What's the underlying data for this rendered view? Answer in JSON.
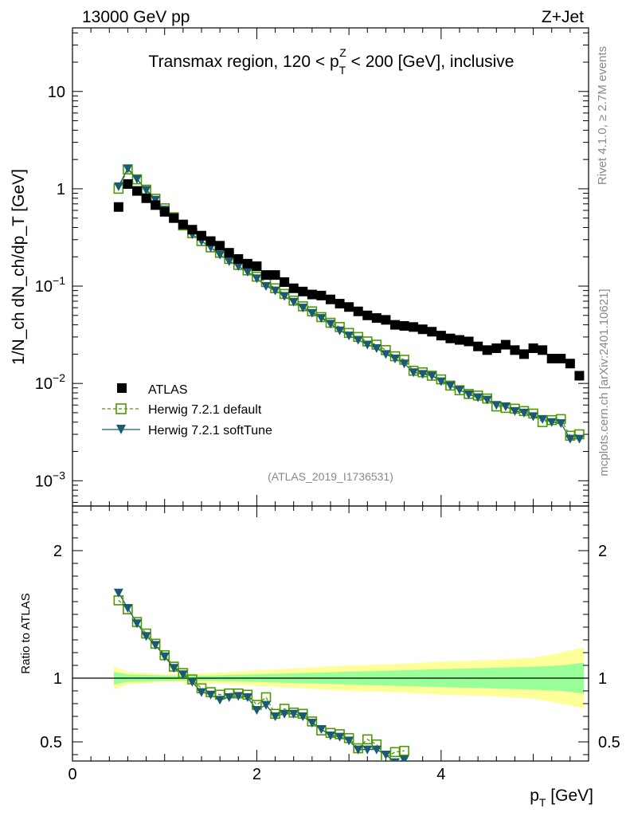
{
  "header": {
    "left": "13000 GeV pp",
    "right": "Z+Jet"
  },
  "side_labels": {
    "top": "Rivet 4.1.0, ≥ 2.7M events",
    "bottom": "mcplots.cern.ch [arXiv:2401.10621]"
  },
  "colors": {
    "atlas": "#000000",
    "default": "#4c9900",
    "softtune": "#1b5a72",
    "band_inner": "#99ff99",
    "band_outer": "#ffff99"
  },
  "chart_data": [
    {
      "type": "scatter",
      "title": "Transmax region, 120 < p_T^Z < 200 [GeV], inclusive",
      "title_parts": {
        "prefix": "Transmax region, 120 < p",
        "sub": "T",
        "sup": "Z",
        "suffix": " < 200 [GeV], inclusive"
      },
      "ylabel": "1/N_ch dN_ch/dp_T [GeV]",
      "yscale": "log",
      "ylim": [
        0.00055,
        45
      ],
      "xlim": [
        0,
        5.6
      ],
      "yticks": [
        {
          "value": 0.001,
          "base": "10",
          "exp": "−3"
        },
        {
          "value": 0.01,
          "base": "10",
          "exp": "−2"
        },
        {
          "value": 0.1,
          "base": "10",
          "exp": "−1"
        },
        {
          "value": 1,
          "label": "1"
        },
        {
          "value": 10,
          "label": "10"
        }
      ],
      "watermark": "(ATLAS_2019_I1736531)",
      "legend": {
        "placement": "bottom-left",
        "entries": [
          "ATLAS",
          "Herwig 7.2.1 default",
          "Herwig 7.2.1 softTune"
        ]
      },
      "x": [
        0.5,
        0.6,
        0.7,
        0.8,
        0.9,
        1.0,
        1.1,
        1.2,
        1.3,
        1.4,
        1.5,
        1.6,
        1.7,
        1.8,
        1.9,
        2.0,
        2.1,
        2.2,
        2.3,
        2.4,
        2.5,
        2.6,
        2.7,
        2.8,
        2.9,
        3.0,
        3.1,
        3.2,
        3.3,
        3.4,
        3.5,
        3.6,
        3.7,
        3.8,
        3.9,
        4.0,
        4.1,
        4.2,
        4.3,
        4.4,
        4.5,
        4.6,
        4.7,
        4.8,
        4.9,
        5.0,
        5.1,
        5.2,
        5.3,
        5.4,
        5.5
      ],
      "series": [
        {
          "name": "ATLAS",
          "marker": "square",
          "values": [
            0.65,
            1.12,
            0.95,
            0.8,
            0.68,
            0.58,
            0.5,
            0.43,
            0.38,
            0.33,
            0.29,
            0.26,
            0.22,
            0.19,
            0.17,
            0.16,
            0.13,
            0.13,
            0.11,
            0.095,
            0.088,
            0.082,
            0.08,
            0.073,
            0.066,
            0.061,
            0.055,
            0.05,
            0.047,
            0.045,
            0.04,
            0.039,
            0.038,
            0.036,
            0.034,
            0.031,
            0.029,
            0.028,
            0.027,
            0.024,
            0.022,
            0.023,
            0.025,
            0.022,
            0.02,
            0.023,
            0.022,
            0.018,
            0.018,
            0.016,
            0.012
          ]
        },
        {
          "name": "Herwig 7.2.1 default",
          "marker": "open-square",
          "values": [
            1.0,
            1.58,
            1.25,
            0.98,
            0.79,
            0.63,
            0.51,
            0.42,
            0.35,
            0.29,
            0.25,
            0.22,
            0.19,
            0.165,
            0.145,
            0.125,
            0.11,
            0.095,
            0.083,
            0.071,
            0.062,
            0.055,
            0.048,
            0.042,
            0.038,
            0.033,
            0.03,
            0.027,
            0.025,
            0.022,
            0.019,
            0.0175,
            0.0135,
            0.013,
            0.012,
            0.011,
            0.0095,
            0.0085,
            0.0078,
            0.0075,
            0.007,
            0.0058,
            0.0056,
            0.0055,
            0.0052,
            0.0049,
            0.004,
            0.0042,
            0.0043,
            0.0029,
            0.003
          ]
        },
        {
          "name": "Herwig 7.2.1 softTune",
          "marker": "down-triangle",
          "values": [
            1.06,
            1.62,
            1.26,
            0.97,
            0.77,
            0.61,
            0.5,
            0.42,
            0.34,
            0.29,
            0.25,
            0.21,
            0.18,
            0.16,
            0.14,
            0.12,
            0.1,
            0.09,
            0.079,
            0.069,
            0.06,
            0.053,
            0.047,
            0.041,
            0.035,
            0.031,
            0.028,
            0.025,
            0.023,
            0.02,
            0.018,
            0.016,
            0.013,
            0.0125,
            0.012,
            0.0105,
            0.0095,
            0.0086,
            0.0077,
            0.0072,
            0.0068,
            0.006,
            0.0058,
            0.0052,
            0.005,
            0.0046,
            0.0043,
            0.004,
            0.0039,
            0.0027,
            0.0027
          ]
        }
      ]
    },
    {
      "type": "scatter",
      "ylabel": "Ratio to ATLAS",
      "xlabel_parts": {
        "main": "p",
        "sub": "T",
        "suffix": " [GeV]"
      },
      "ylim": [
        0.35,
        2.35
      ],
      "xlim": [
        0,
        5.6
      ],
      "yticks": [
        0.5,
        1,
        2
      ],
      "xticks": [
        0,
        2,
        4
      ],
      "x": [
        0.5,
        0.6,
        0.7,
        0.8,
        0.9,
        1.0,
        1.1,
        1.2,
        1.3,
        1.4,
        1.5,
        1.6,
        1.7,
        1.8,
        1.9,
        2.0,
        2.1,
        2.2,
        2.3,
        2.4,
        2.5,
        2.6,
        2.7,
        2.8,
        2.9,
        3.0,
        3.1,
        3.2,
        3.3,
        3.4,
        3.5,
        3.6
      ],
      "band": {
        "x": [
          0.45,
          0.6,
          1.0,
          1.5,
          2.0,
          2.5,
          3.0,
          3.5,
          4.0,
          4.5,
          5.0,
          5.3,
          5.55
        ],
        "inner": [
          0.05,
          0.03,
          0.02,
          0.02,
          0.03,
          0.04,
          0.05,
          0.06,
          0.07,
          0.08,
          0.09,
          0.1,
          0.12
        ],
        "outer": [
          0.09,
          0.05,
          0.03,
          0.04,
          0.06,
          0.08,
          0.1,
          0.11,
          0.13,
          0.14,
          0.16,
          0.2,
          0.24
        ]
      },
      "series": [
        {
          "name": "Herwig 7.2.1 default",
          "marker": "open-square",
          "values": [
            1.61,
            1.54,
            1.44,
            1.35,
            1.27,
            1.18,
            1.09,
            1.04,
            0.99,
            0.92,
            0.89,
            0.87,
            0.88,
            0.88,
            0.87,
            0.79,
            0.85,
            0.72,
            0.76,
            0.73,
            0.72,
            0.66,
            0.59,
            0.57,
            0.56,
            0.53,
            0.45,
            0.52,
            0.48,
            0.38,
            0.42,
            0.43
          ]
        },
        {
          "name": "Herwig 7.2.1 softTune",
          "marker": "down-triangle",
          "values": [
            1.67,
            1.55,
            1.43,
            1.33,
            1.26,
            1.17,
            1.08,
            1.03,
            0.97,
            0.89,
            0.87,
            0.83,
            0.85,
            0.86,
            0.85,
            0.75,
            0.79,
            0.7,
            0.72,
            0.72,
            0.7,
            0.65,
            0.6,
            0.55,
            0.54,
            0.51,
            0.44,
            0.44,
            0.44,
            0.4,
            0.34,
            0.36
          ]
        }
      ]
    }
  ]
}
